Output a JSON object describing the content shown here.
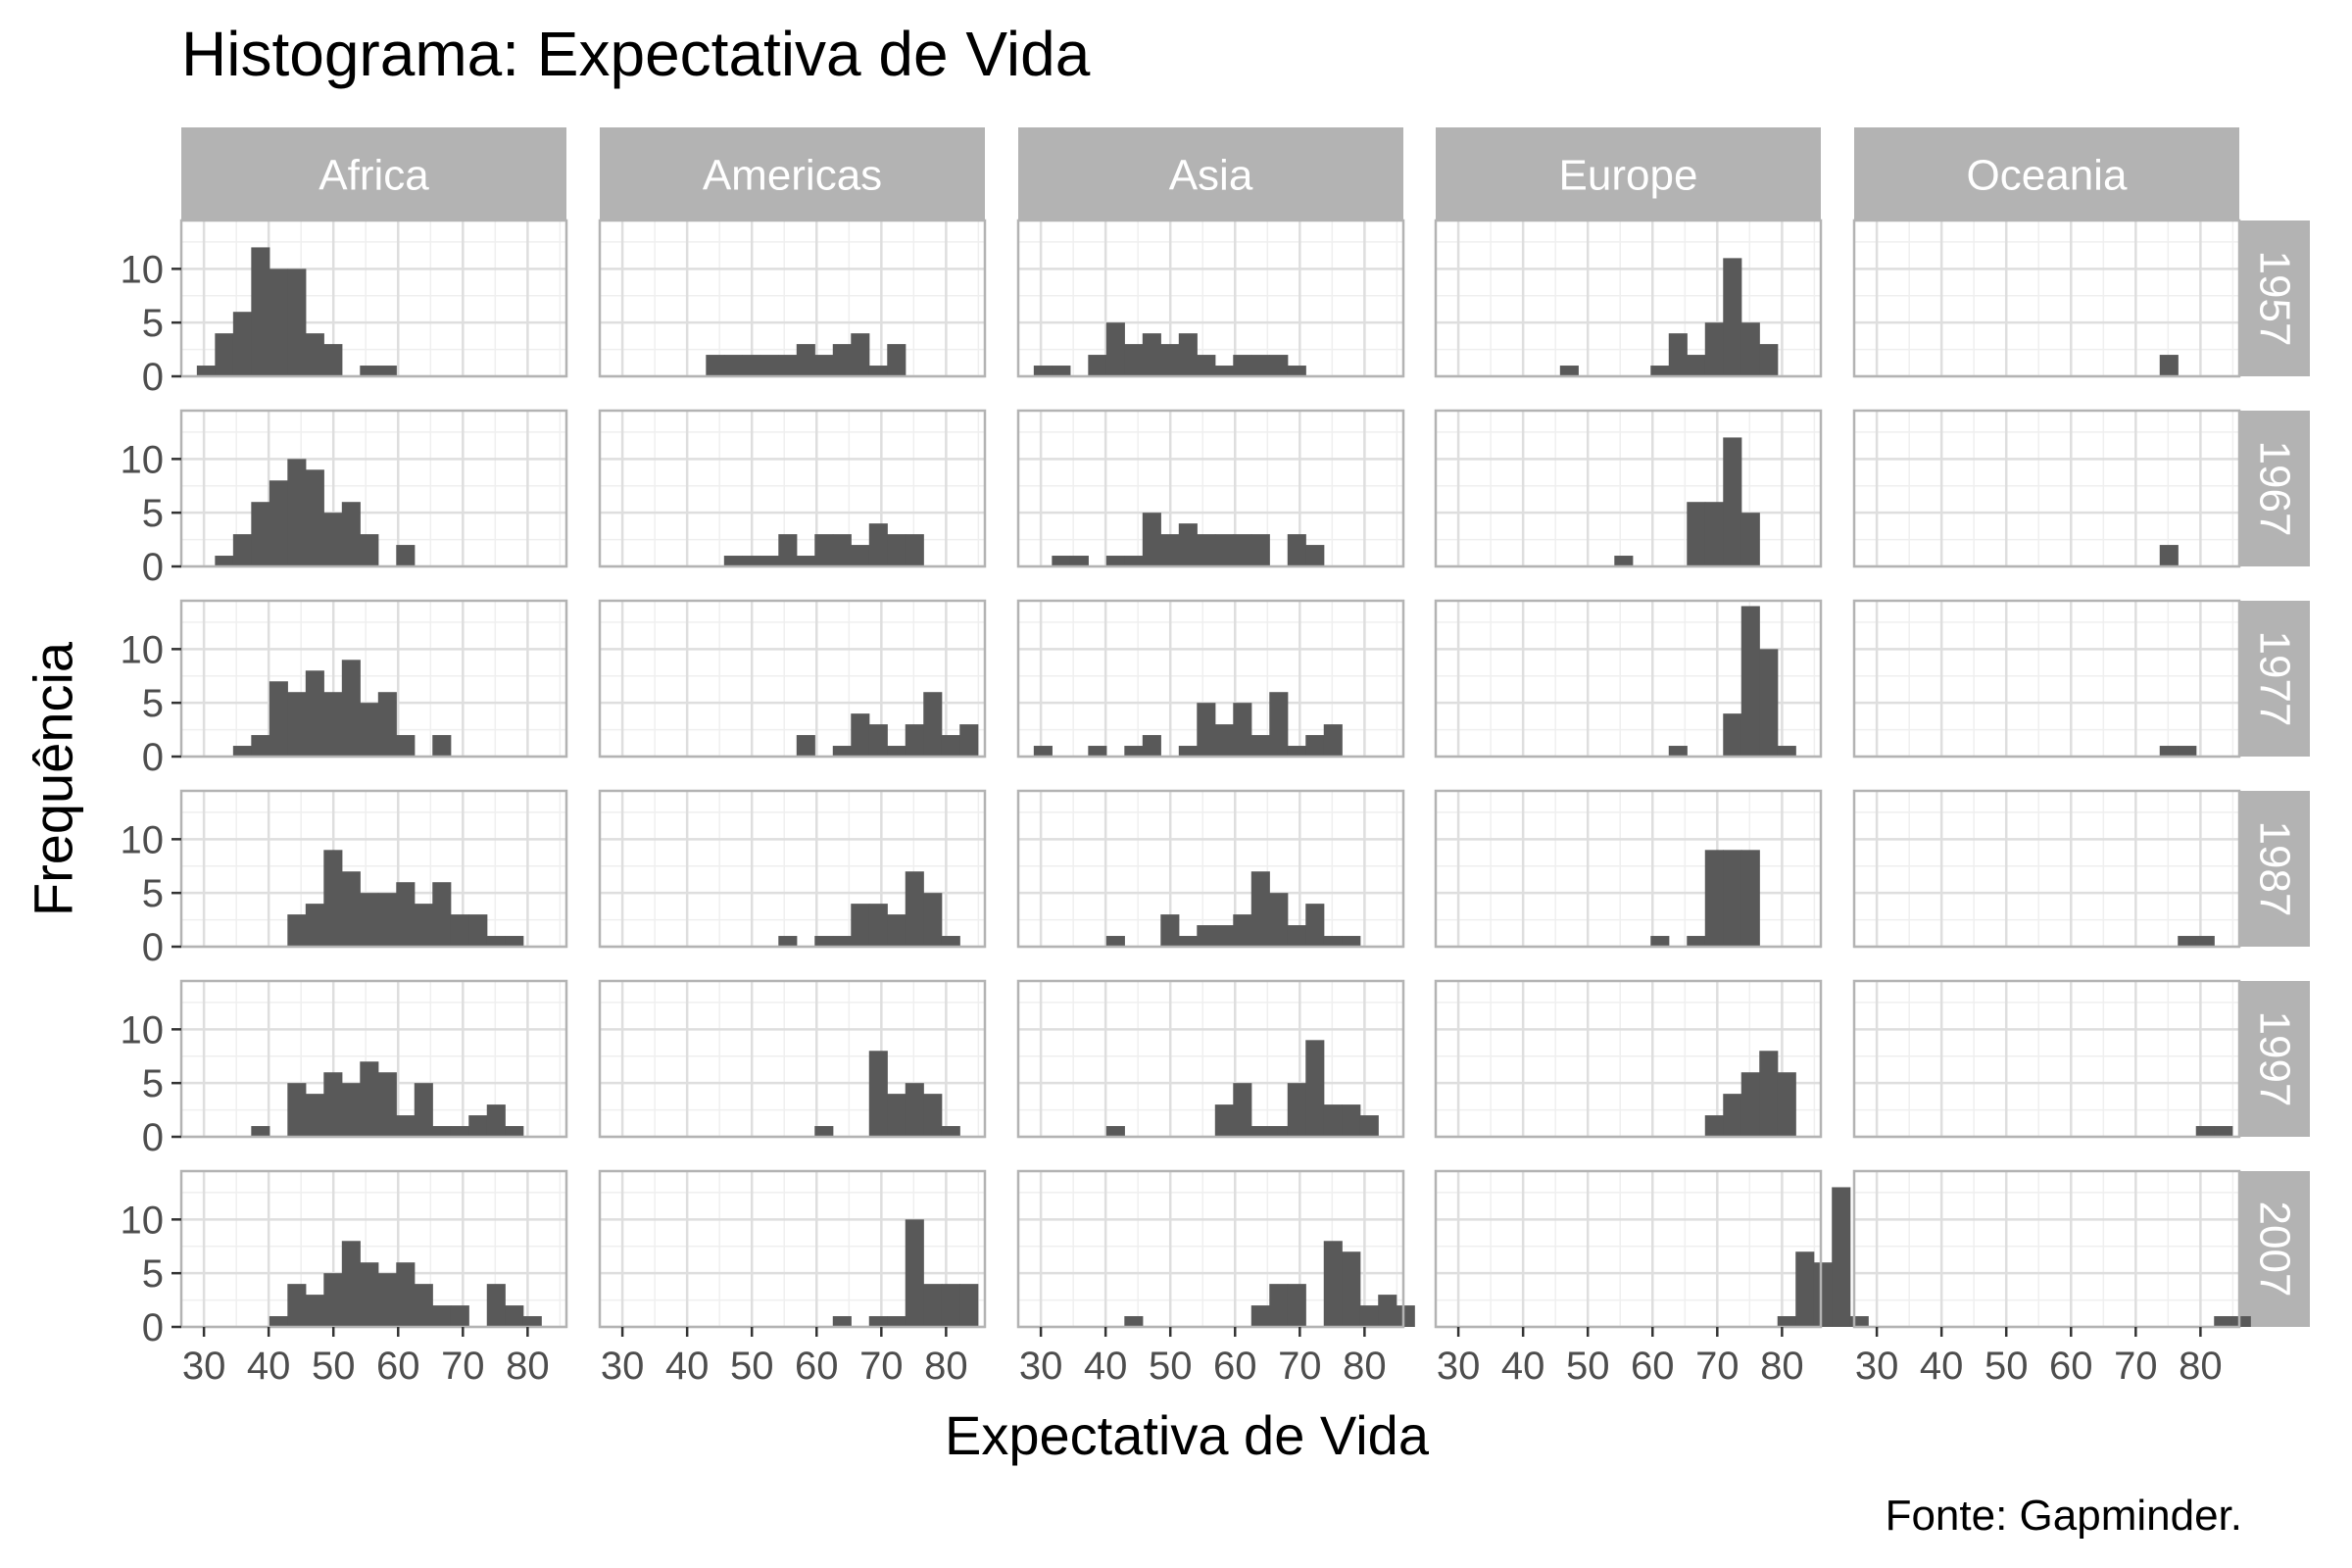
{
  "title": "Histograma: Expectativa de Vida",
  "caption": "Fonte: Gapminder.",
  "chart_data": {
    "type": "bar",
    "subtype": "faceted-histogram",
    "title": "Histograma: Expectativa de Vida",
    "xlabel": "Expectativa de Vida",
    "ylabel": "Frequência",
    "caption": "Fonte: Gapminder.",
    "xlim": [
      26.5,
      86
    ],
    "ylim": [
      0,
      14.5
    ],
    "x_ticks": [
      30,
      40,
      50,
      60,
      70,
      80
    ],
    "y_ticks": [
      0,
      5,
      10
    ],
    "bin_width": 2.8,
    "bin_start": 28.9,
    "grid": true,
    "columns": [
      "Africa",
      "Americas",
      "Asia",
      "Europe",
      "Oceania"
    ],
    "rows": [
      "1957",
      "1967",
      "1977",
      "1987",
      "1997",
      "2007"
    ],
    "facets": [
      {
        "continent": "Africa",
        "year": "1957",
        "counts": [
          1,
          4,
          6,
          12,
          10,
          10,
          4,
          3,
          0,
          1,
          1
        ]
      },
      {
        "continent": "Americas",
        "year": "1957",
        "counts": [
          0,
          0,
          0,
          0,
          0,
          2,
          2,
          2,
          2,
          2,
          3,
          2,
          3,
          4,
          1,
          3
        ]
      },
      {
        "continent": "Asia",
        "year": "1957",
        "counts": [
          1,
          1,
          0,
          2,
          5,
          3,
          4,
          3,
          4,
          2,
          1,
          2,
          2,
          2,
          1
        ]
      },
      {
        "continent": "Europe",
        "year": "1957",
        "counts": [
          0,
          0,
          0,
          0,
          0,
          0,
          1,
          0,
          0,
          0,
          0,
          1,
          4,
          2,
          5,
          11,
          5,
          3
        ]
      },
      {
        "continent": "Oceania",
        "year": "1957",
        "counts": [
          0,
          0,
          0,
          0,
          0,
          0,
          0,
          0,
          0,
          0,
          0,
          0,
          0,
          0,
          0,
          0,
          2
        ]
      },
      {
        "continent": "Africa",
        "year": "1967",
        "counts": [
          0,
          1,
          3,
          6,
          8,
          10,
          9,
          5,
          6,
          3,
          0,
          2
        ]
      },
      {
        "continent": "Americas",
        "year": "1967",
        "counts": [
          0,
          0,
          0,
          0,
          0,
          0,
          1,
          1,
          1,
          3,
          1,
          3,
          3,
          2,
          4,
          3,
          3
        ]
      },
      {
        "continent": "Asia",
        "year": "1967",
        "counts": [
          0,
          1,
          1,
          0,
          1,
          1,
          5,
          3,
          4,
          3,
          3,
          3,
          3,
          0,
          3,
          2
        ]
      },
      {
        "continent": "Europe",
        "year": "1967",
        "counts": [
          0,
          0,
          0,
          0,
          0,
          0,
          0,
          0,
          0,
          1,
          0,
          0,
          0,
          6,
          6,
          12,
          5
        ]
      },
      {
        "continent": "Oceania",
        "year": "1967",
        "counts": [
          0,
          0,
          0,
          0,
          0,
          0,
          0,
          0,
          0,
          0,
          0,
          0,
          0,
          0,
          0,
          0,
          2
        ]
      },
      {
        "continent": "Africa",
        "year": "1977",
        "counts": [
          0,
          0,
          1,
          2,
          7,
          6,
          8,
          6,
          9,
          5,
          6,
          2,
          0,
          2
        ]
      },
      {
        "continent": "Americas",
        "year": "1977",
        "counts": [
          0,
          0,
          0,
          0,
          0,
          0,
          0,
          0,
          0,
          0,
          2,
          0,
          1,
          4,
          3,
          1,
          3,
          6,
          2,
          3
        ]
      },
      {
        "continent": "Asia",
        "year": "1977",
        "counts": [
          1,
          0,
          0,
          1,
          0,
          1,
          2,
          0,
          1,
          5,
          3,
          5,
          2,
          6,
          1,
          2,
          3
        ]
      },
      {
        "continent": "Europe",
        "year": "1977",
        "counts": [
          0,
          0,
          0,
          0,
          0,
          0,
          0,
          0,
          0,
          0,
          0,
          0,
          1,
          0,
          0,
          4,
          14,
          10,
          1
        ]
      },
      {
        "continent": "Oceania",
        "year": "1977",
        "counts": [
          0,
          0,
          0,
          0,
          0,
          0,
          0,
          0,
          0,
          0,
          0,
          0,
          0,
          0,
          0,
          0,
          1,
          1
        ]
      },
      {
        "continent": "Africa",
        "year": "1987",
        "counts": [
          0,
          0,
          0,
          0,
          0,
          3,
          4,
          9,
          7,
          5,
          5,
          6,
          4,
          6,
          3,
          3,
          1,
          1
        ]
      },
      {
        "continent": "Americas",
        "year": "1987",
        "counts": [
          0,
          0,
          0,
          0,
          0,
          0,
          0,
          0,
          0,
          1,
          0,
          1,
          1,
          4,
          4,
          3,
          7,
          5,
          1
        ]
      },
      {
        "continent": "Asia",
        "year": "1987",
        "counts": [
          0,
          0,
          0,
          0,
          1,
          0,
          0,
          3,
          1,
          2,
          2,
          3,
          7,
          5,
          2,
          4,
          1,
          1
        ]
      },
      {
        "continent": "Europe",
        "year": "1987",
        "counts": [
          0,
          0,
          0,
          0,
          0,
          0,
          0,
          0,
          0,
          0,
          0,
          1,
          0,
          1,
          9,
          9,
          9
        ]
      },
      {
        "continent": "Oceania",
        "year": "1987",
        "counts": [
          0,
          0,
          0,
          0,
          0,
          0,
          0,
          0,
          0,
          0,
          0,
          0,
          0,
          0,
          0,
          0,
          0,
          1,
          1
        ]
      },
      {
        "continent": "Africa",
        "year": "1997",
        "counts": [
          0,
          0,
          0,
          1,
          0,
          5,
          4,
          6,
          5,
          7,
          6,
          2,
          5,
          1,
          1,
          2,
          3,
          1
        ]
      },
      {
        "continent": "Americas",
        "year": "1997",
        "counts": [
          0,
          0,
          0,
          0,
          0,
          0,
          0,
          0,
          0,
          0,
          0,
          1,
          0,
          0,
          8,
          4,
          5,
          4,
          1
        ]
      },
      {
        "continent": "Asia",
        "year": "1997",
        "counts": [
          0,
          0,
          0,
          0,
          1,
          0,
          0,
          0,
          0,
          0,
          3,
          5,
          1,
          1,
          5,
          9,
          3,
          3,
          2
        ]
      },
      {
        "continent": "Europe",
        "year": "1997",
        "counts": [
          0,
          0,
          0,
          0,
          0,
          0,
          0,
          0,
          0,
          0,
          0,
          0,
          0,
          0,
          2,
          4,
          6,
          8,
          6
        ]
      },
      {
        "continent": "Oceania",
        "year": "1997",
        "counts": [
          0,
          0,
          0,
          0,
          0,
          0,
          0,
          0,
          0,
          0,
          0,
          0,
          0,
          0,
          0,
          0,
          0,
          0,
          1,
          1
        ]
      },
      {
        "continent": "Africa",
        "year": "2007",
        "counts": [
          0,
          0,
          0,
          0,
          1,
          4,
          3,
          5,
          8,
          6,
          5,
          6,
          4,
          2,
          2,
          0,
          4,
          2,
          1
        ]
      },
      {
        "continent": "Americas",
        "year": "2007",
        "counts": [
          0,
          0,
          0,
          0,
          0,
          0,
          0,
          0,
          0,
          0,
          0,
          0,
          1,
          0,
          1,
          1,
          10,
          4,
          4,
          4
        ]
      },
      {
        "continent": "Asia",
        "year": "2007",
        "counts": [
          0,
          0,
          0,
          0,
          0,
          1,
          0,
          0,
          0,
          0,
          0,
          0,
          2,
          4,
          4,
          0,
          8,
          7,
          2,
          3,
          2
        ]
      },
      {
        "continent": "Europe",
        "year": "2007",
        "counts": [
          0,
          0,
          0,
          0,
          0,
          0,
          0,
          0,
          0,
          0,
          0,
          0,
          0,
          0,
          0,
          0,
          0,
          0,
          1,
          7,
          6,
          13,
          1
        ]
      },
      {
        "continent": "Oceania",
        "year": "2007",
        "counts": [
          0,
          0,
          0,
          0,
          0,
          0,
          0,
          0,
          0,
          0,
          0,
          0,
          0,
          0,
          0,
          0,
          0,
          0,
          0,
          1,
          1
        ]
      }
    ]
  },
  "colors": {
    "bar": "#595959",
    "strip": "#b3b3b3",
    "strip_text": "#ffffff",
    "panel_border": "#b3b3b3",
    "grid_major": "#dedede",
    "grid_minor": "#efefef",
    "tick_text": "#4d4d4d"
  }
}
